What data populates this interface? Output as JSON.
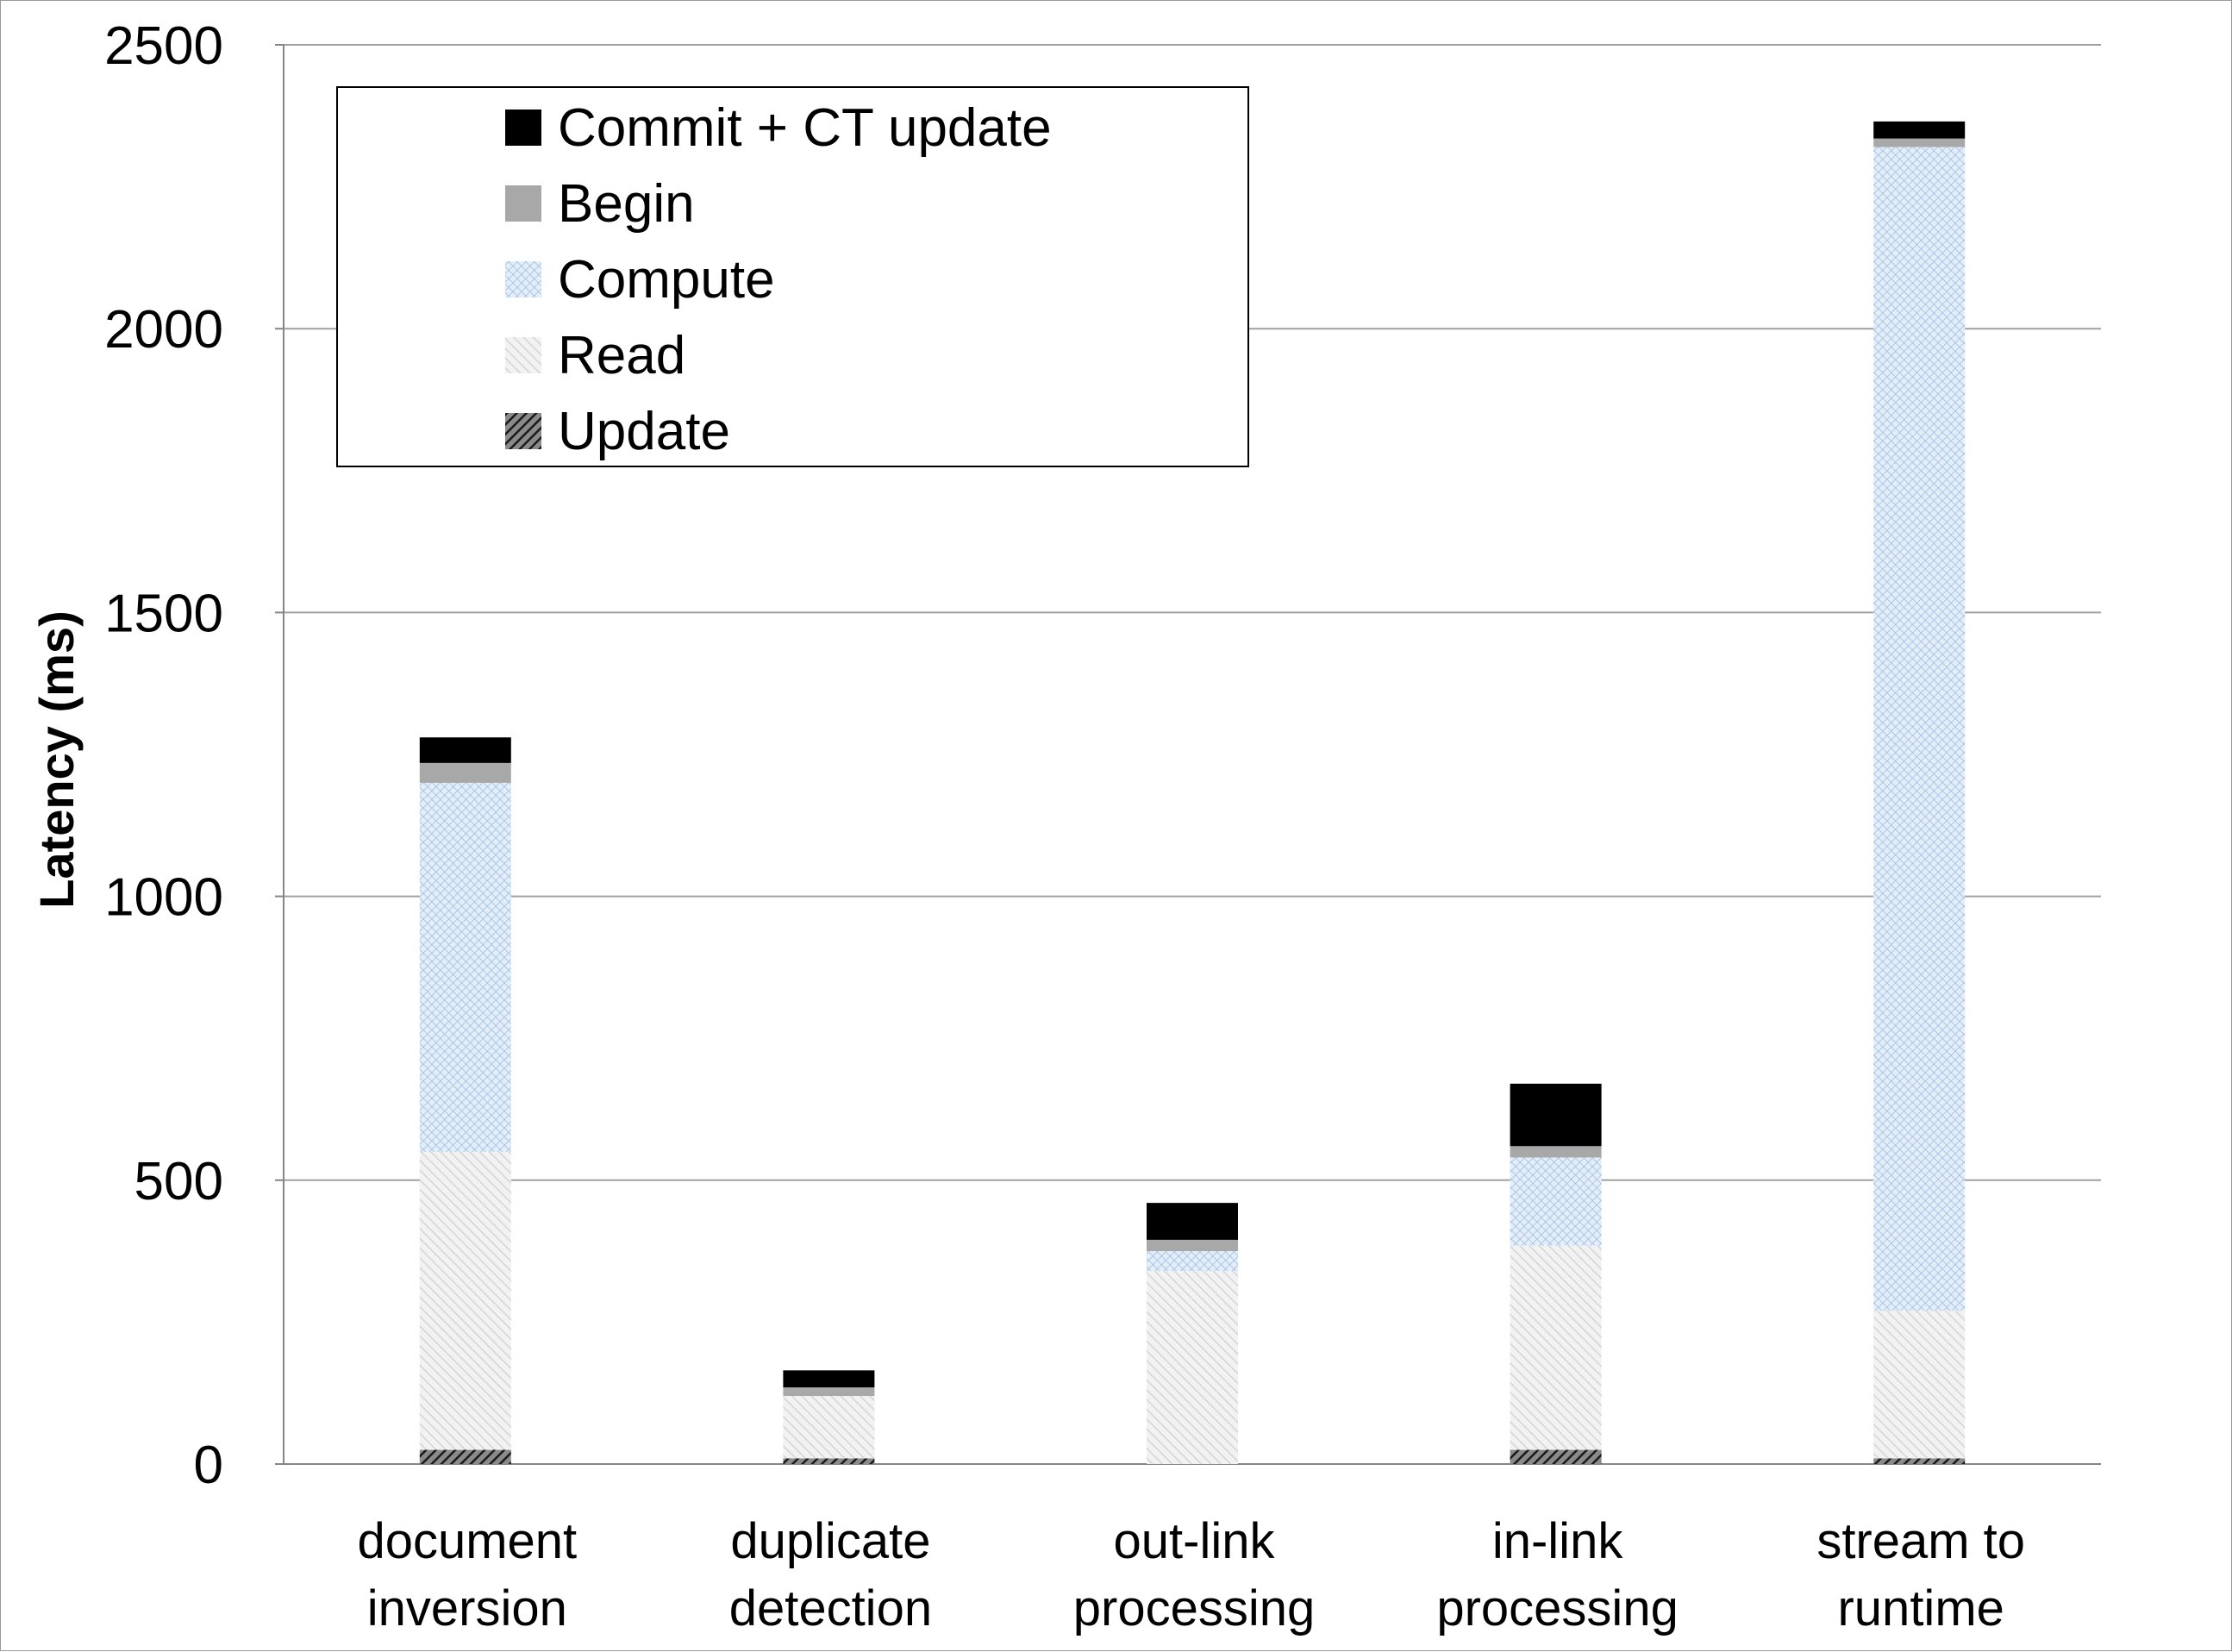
{
  "chart_data": {
    "type": "bar",
    "stacked": true,
    "title": "",
    "xlabel": "",
    "ylabel": "Latency (ms)",
    "ylim": [
      0,
      2500
    ],
    "yticks": [
      "0",
      "500",
      "1000",
      "1500",
      "2000",
      "2500"
    ],
    "grid": true,
    "legend_position": "top-left",
    "categories": [
      [
        "document",
        "inversion"
      ],
      [
        "duplicate",
        "detection"
      ],
      [
        "out-link",
        "processing"
      ],
      [
        "in-link",
        "processing"
      ],
      [
        "stream to",
        "runtime"
      ]
    ],
    "series": [
      {
        "name": "Update",
        "color": "#3a3a3a",
        "pattern": "dark-diagonal",
        "values": [
          25,
          10,
          0,
          25,
          10
        ]
      },
      {
        "name": "Read",
        "color": "#e6e6e6",
        "pattern": "light-diagonal",
        "values": [
          525,
          110,
          340,
          360,
          260
        ]
      },
      {
        "name": "Compute",
        "color": "#b9cfe8",
        "pattern": "blue-crosshatch",
        "values": [
          650,
          0,
          35,
          155,
          2050
        ]
      },
      {
        "name": "Begin",
        "color": "#a8a8a8",
        "pattern": "solid",
        "values": [
          35,
          15,
          20,
          20,
          15
        ]
      },
      {
        "name": "Commit + CT update",
        "color": "#000000",
        "pattern": "solid",
        "values": [
          45,
          30,
          65,
          110,
          30
        ]
      }
    ],
    "legend_order": [
      "Commit + CT update",
      "Begin",
      "Compute",
      "Read",
      "Update"
    ]
  }
}
